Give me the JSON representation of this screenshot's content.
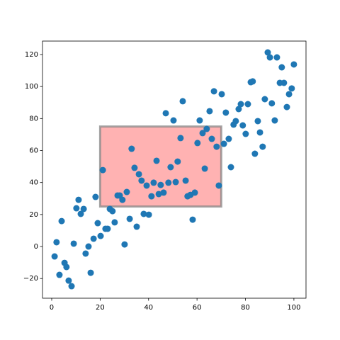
{
  "chart_data": {
    "type": "scatter",
    "x": [
      1.2,
      2,
      3.2,
      4.1,
      5.3,
      6.1,
      7,
      8.2,
      9.1,
      10.2,
      11.1,
      12,
      13.2,
      14,
      15.2,
      16.1,
      17.3,
      18.1,
      19,
      20.2,
      21.1,
      22.2,
      23.1,
      24,
      25.1,
      26,
      27.2,
      28.1,
      29.2,
      30.1,
      31,
      32.2,
      33,
      34.2,
      35.1,
      36,
      37.1,
      38,
      39.2,
      40.1,
      41.2,
      42.1,
      43.3,
      44.2,
      45,
      46.2,
      47.1,
      48.2,
      49.1,
      50.3,
      51.2,
      52,
      53.2,
      54.1,
      55.3,
      56.1,
      57.3,
      58.2,
      59.1,
      60.2,
      61.1,
      62.3,
      63.2,
      64,
      65.2,
      66.1,
      67,
      68.1,
      69,
      70.2,
      71.1,
      71.9,
      73.1,
      74,
      75.1,
      76,
      77.2,
      78.1,
      78.9,
      80.1,
      81,
      82.2,
      83,
      83.9,
      85.1,
      86,
      87.1,
      88,
      89.2,
      90.1,
      90.9,
      92.1,
      93,
      94.2,
      95,
      95.9,
      97.1,
      98,
      99.1,
      100
    ],
    "values": [
      -6.2,
      2.7,
      -17.7,
      15.9,
      -10.2,
      -12.8,
      -21.3,
      -24.8,
      1.8,
      23.9,
      29.2,
      20.4,
      23.5,
      -4.4,
      0,
      -16.4,
      4.9,
      31,
      14.6,
      6.6,
      47.8,
      11.1,
      11.1,
      23.5,
      22.1,
      15.1,
      31.9,
      31.9,
      29.2,
      1.3,
      34.1,
      17.3,
      61.1,
      49.2,
      12.4,
      45.2,
      41.2,
      20.4,
      38.1,
      19.9,
      31.4,
      39.9,
      53.6,
      32.8,
      38.5,
      33.7,
      83.3,
      39.9,
      49.6,
      78.8,
      40.3,
      53.1,
      67.8,
      90.8,
      41.2,
      31.4,
      32.3,
      16.8,
      33.7,
      64.7,
      78.8,
      70.9,
      48.7,
      73.5,
      84.6,
      67.3,
      97,
      62.4,
      38.1,
      95.2,
      64.2,
      83.7,
      67.3,
      49.6,
      76.2,
      78.4,
      85.9,
      89,
      75.7,
      70.4,
      89,
      102.7,
      103.2,
      58,
      78.4,
      71.3,
      62.4,
      92.1,
      121.3,
      118.2,
      89.5,
      78.8,
      118.2,
      102.3,
      112,
      102.3,
      87.2,
      95.2,
      98.8,
      113.8
    ],
    "color": "#1f77b4",
    "xlim": [
      -3.8,
      105
    ],
    "ylim": [
      -32.3,
      128.4
    ],
    "xticks": [
      0,
      20,
      40,
      60,
      80,
      100
    ],
    "yticks": [
      {
        "value": -20,
        "label": "−20"
      },
      0,
      20,
      40,
      60,
      80,
      100,
      120
    ],
    "selection": {
      "x": [
        20,
        70
      ],
      "y": [
        25,
        75
      ],
      "color": "#ff0000",
      "edgecolor": "#808080"
    }
  }
}
